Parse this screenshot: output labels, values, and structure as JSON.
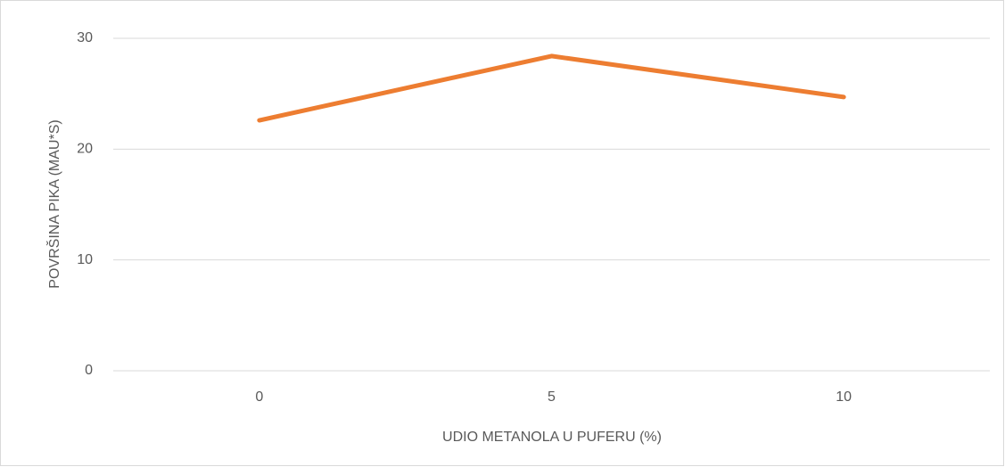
{
  "chart_data": {
    "type": "line",
    "x_label": "UDIO METANOLA U PUFERU (%)",
    "y_label": "POVRŠINA PIKA (MAU*S)",
    "categories": [
      "0",
      "5",
      "10"
    ],
    "series": [
      {
        "name": "Površina pika",
        "color": "#ED7D31",
        "values": [
          22.6,
          28.4,
          24.7
        ]
      }
    ],
    "ylim": [
      0,
      30
    ],
    "yticks": [
      0,
      10,
      20,
      30
    ],
    "grid": true
  }
}
